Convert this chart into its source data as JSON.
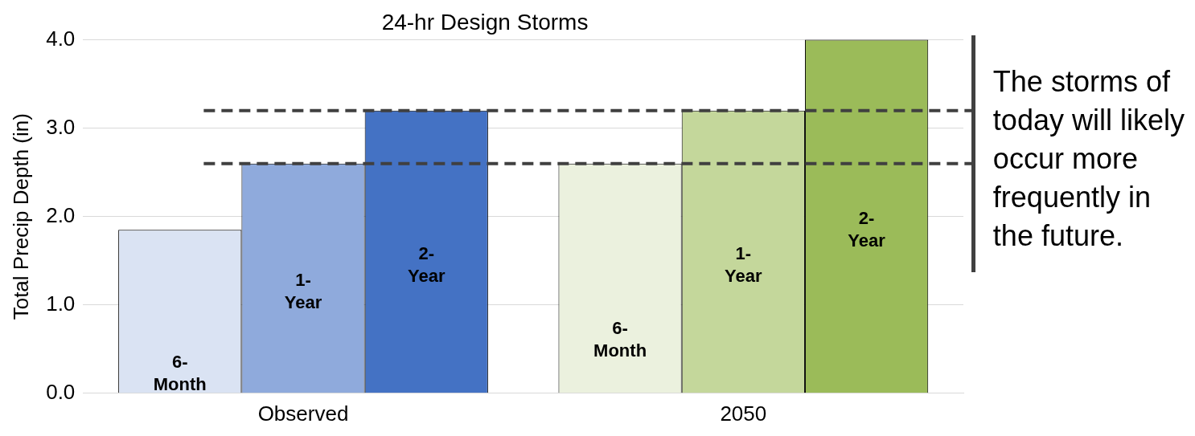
{
  "chart_data": {
    "type": "bar",
    "title": "24-hr Design Storms",
    "ylabel": "Total Precip Depth (in)",
    "categories": [
      "Observed",
      "2050"
    ],
    "series": [
      {
        "name": "6- Month",
        "colors": [
          "#dae3f3",
          "#ebf1de"
        ],
        "values": [
          1.85,
          2.6
        ]
      },
      {
        "name": "1- Year",
        "colors": [
          "#8faadc",
          "#c4d79b"
        ],
        "values": [
          2.6,
          3.2
        ]
      },
      {
        "name": "2- Year",
        "colors": [
          "#4472c4",
          "#9bbb59"
        ],
        "values": [
          3.2,
          4.0
        ]
      }
    ],
    "ylim": [
      0,
      4
    ],
    "yticks": [
      {
        "value": 0,
        "label": "0.0"
      },
      {
        "value": 1,
        "label": "1.0"
      },
      {
        "value": 2,
        "label": "2.0"
      },
      {
        "value": 3,
        "label": "3.0"
      },
      {
        "value": 4,
        "label": "4.0"
      }
    ],
    "grid": "y",
    "legend": false,
    "ref_lines": [
      {
        "axis": "y",
        "value": 3.2,
        "color": "#404040",
        "line_style": "dashed"
      },
      {
        "axis": "y",
        "value": 2.6,
        "color": "#404040",
        "line_style": "dashed"
      }
    ],
    "annotations": [
      "The storms of today will likely occur more frequently in the future."
    ]
  }
}
